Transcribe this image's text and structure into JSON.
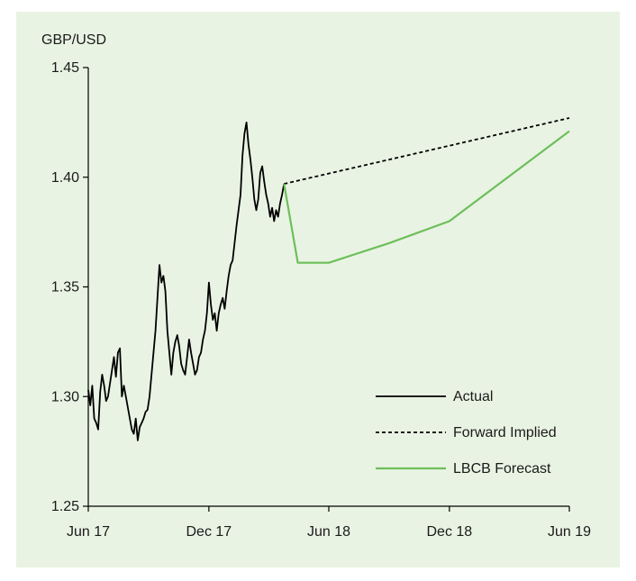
{
  "chart_data": {
    "type": "line",
    "ylabel": "GBP/USD",
    "ylim": [
      1.25,
      1.45
    ],
    "yticks": [
      1.25,
      1.3,
      1.35,
      1.4,
      1.45
    ],
    "ytick_labels": [
      "1.25",
      "1.30",
      "1.35",
      "1.40",
      "1.45"
    ],
    "xlim": [
      "2017-06-01",
      "2019-06-01"
    ],
    "xticks": [
      "2017-06-01",
      "2017-12-01",
      "2018-06-01",
      "2018-12-01",
      "2019-06-01"
    ],
    "xtick_labels": [
      "Jun 17",
      "Dec 17",
      "Jun 18",
      "Dec 18",
      "Jun 19"
    ],
    "legend_position": "bottom-right",
    "grid": false,
    "background": "#e9f3e3",
    "series": [
      {
        "name": "Actual",
        "style": "solid",
        "color": "#000000",
        "x": [
          "2017-06-01",
          "2017-06-04",
          "2017-06-07",
          "2017-06-10",
          "2017-06-13",
          "2017-06-16",
          "2017-06-19",
          "2017-06-22",
          "2017-06-25",
          "2017-06-28",
          "2017-07-01",
          "2017-07-04",
          "2017-07-07",
          "2017-07-10",
          "2017-07-13",
          "2017-07-16",
          "2017-07-19",
          "2017-07-22",
          "2017-07-25",
          "2017-07-28",
          "2017-07-31",
          "2017-08-03",
          "2017-08-06",
          "2017-08-09",
          "2017-08-12",
          "2017-08-15",
          "2017-08-18",
          "2017-08-21",
          "2017-08-24",
          "2017-08-27",
          "2017-08-30",
          "2017-09-02",
          "2017-09-05",
          "2017-09-08",
          "2017-09-11",
          "2017-09-14",
          "2017-09-17",
          "2017-09-20",
          "2017-09-23",
          "2017-09-26",
          "2017-09-29",
          "2017-10-02",
          "2017-10-05",
          "2017-10-08",
          "2017-10-11",
          "2017-10-14",
          "2017-10-17",
          "2017-10-20",
          "2017-10-23",
          "2017-10-26",
          "2017-10-29",
          "2017-11-01",
          "2017-11-04",
          "2017-11-07",
          "2017-11-10",
          "2017-11-13",
          "2017-11-16",
          "2017-11-19",
          "2017-11-22",
          "2017-11-25",
          "2017-11-28",
          "2017-12-01",
          "2017-12-04",
          "2017-12-07",
          "2017-12-10",
          "2017-12-13",
          "2017-12-16",
          "2017-12-19",
          "2017-12-22",
          "2017-12-25",
          "2017-12-28",
          "2017-12-31",
          "2018-01-03",
          "2018-01-06",
          "2018-01-09",
          "2018-01-12",
          "2018-01-15",
          "2018-01-18",
          "2018-01-21",
          "2018-01-24",
          "2018-01-27",
          "2018-01-30",
          "2018-02-02",
          "2018-02-05",
          "2018-02-08",
          "2018-02-11",
          "2018-02-14",
          "2018-02-17",
          "2018-02-20",
          "2018-02-23",
          "2018-02-26",
          "2018-03-01",
          "2018-03-04",
          "2018-03-07",
          "2018-03-10",
          "2018-03-13",
          "2018-03-16",
          "2018-03-19",
          "2018-03-22",
          "2018-03-25"
        ],
        "values": [
          1.303,
          1.296,
          1.305,
          1.29,
          1.288,
          1.285,
          1.302,
          1.31,
          1.305,
          1.298,
          1.3,
          1.306,
          1.312,
          1.318,
          1.309,
          1.32,
          1.322,
          1.3,
          1.305,
          1.3,
          1.295,
          1.29,
          1.285,
          1.283,
          1.29,
          1.28,
          1.286,
          1.288,
          1.29,
          1.293,
          1.294,
          1.3,
          1.31,
          1.32,
          1.33,
          1.345,
          1.36,
          1.352,
          1.355,
          1.348,
          1.33,
          1.32,
          1.31,
          1.32,
          1.325,
          1.328,
          1.323,
          1.315,
          1.312,
          1.31,
          1.318,
          1.326,
          1.32,
          1.315,
          1.31,
          1.312,
          1.318,
          1.32,
          1.326,
          1.33,
          1.338,
          1.352,
          1.342,
          1.335,
          1.338,
          1.33,
          1.338,
          1.342,
          1.345,
          1.34,
          1.348,
          1.355,
          1.36,
          1.362,
          1.37,
          1.378,
          1.385,
          1.392,
          1.41,
          1.42,
          1.425,
          1.415,
          1.408,
          1.4,
          1.39,
          1.385,
          1.39,
          1.402,
          1.405,
          1.398,
          1.392,
          1.388,
          1.382,
          1.386,
          1.38,
          1.385,
          1.382,
          1.388,
          1.392,
          1.397
        ]
      },
      {
        "name": "Forward Implied",
        "style": "dashed",
        "color": "#000000",
        "x": [
          "2018-03-25",
          "2019-06-01"
        ],
        "values": [
          1.397,
          1.427
        ]
      },
      {
        "name": "LBCB Forecast",
        "style": "solid",
        "color": "#6dbf5a",
        "x": [
          "2018-03-25",
          "2018-04-15",
          "2018-06-01",
          "2018-09-01",
          "2018-12-01",
          "2019-06-01"
        ],
        "values": [
          1.397,
          1.361,
          1.361,
          1.37,
          1.38,
          1.421
        ]
      }
    ]
  }
}
